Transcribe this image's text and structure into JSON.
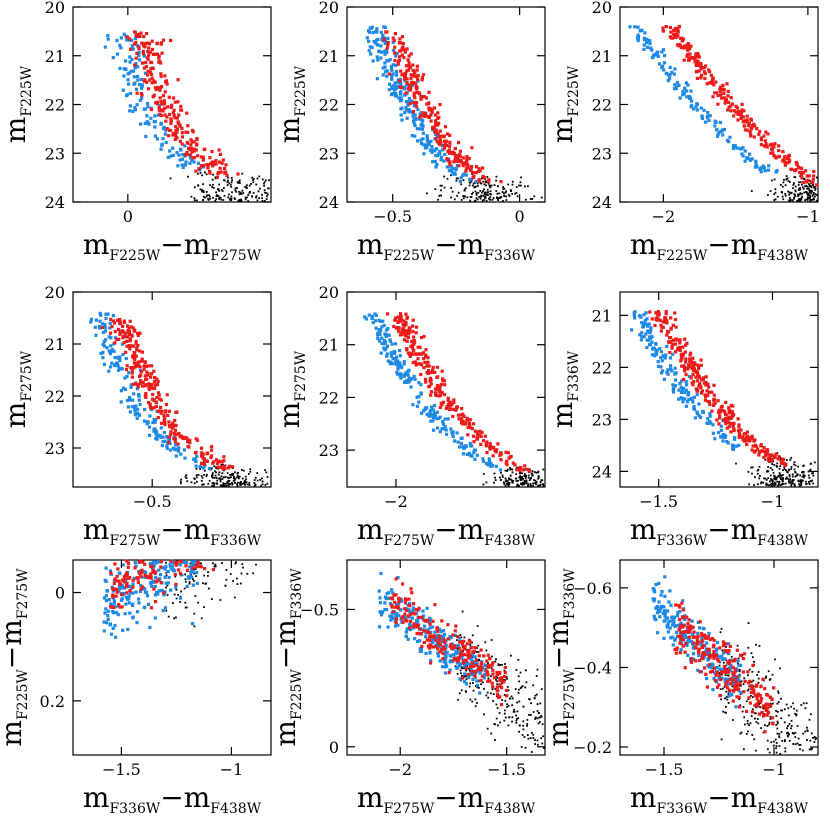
{
  "colors": {
    "red": "#ee1b1b",
    "blue": "#1e88e5",
    "black": "#000000"
  },
  "chart_data": [
    {
      "type": "scatter",
      "row": 0,
      "col": 0,
      "xlabel": {
        "m1": "F225W",
        "m2": "F275W"
      },
      "ylabel": {
        "m1": "F225W"
      },
      "xlim": [
        -0.18,
        0.47
      ],
      "ylim": [
        24,
        20
      ],
      "y_inverted": true,
      "xticks": [
        0
      ],
      "xtick_labels": [
        "0"
      ],
      "yticks": [
        20,
        21,
        22,
        23,
        24
      ],
      "ytick_labels": [
        "20",
        "21",
        "22",
        "23",
        "24"
      ],
      "grid": false,
      "legend": "none",
      "ridge": {
        "x": [
          0.0,
          0.03,
          0.07,
          0.12,
          0.18,
          0.24,
          0.3
        ],
        "y": [
          20.5,
          21.3,
          22.0,
          22.6,
          23.0,
          23.35,
          23.6
        ]
      },
      "series": [
        {
          "color": "red",
          "n": 230,
          "y_range": [
            20.5,
            23.5
          ],
          "offset": 0.05,
          "spread": 0.03
        },
        {
          "color": "blue",
          "n": 130,
          "y_range": [
            20.5,
            23.4
          ],
          "offset": -0.02,
          "spread": 0.025
        },
        {
          "color": "black",
          "n": 190,
          "y_range": [
            23.3,
            24.0
          ],
          "offset": 0.06,
          "spread": 0.08
        }
      ]
    },
    {
      "type": "scatter",
      "row": 0,
      "col": 1,
      "xlabel": {
        "m1": "F225W",
        "m2": "F336W"
      },
      "ylabel": {
        "m1": "F225W"
      },
      "xlim": [
        -0.68,
        0.1
      ],
      "ylim": [
        24,
        20
      ],
      "y_inverted": true,
      "xticks": [
        -0.5,
        0
      ],
      "xtick_labels": [
        "−0.5",
        "0"
      ],
      "yticks": [
        20,
        21,
        22,
        23,
        24
      ],
      "ytick_labels": [
        "20",
        "21",
        "22",
        "23",
        "24"
      ],
      "grid": false,
      "legend": "none",
      "ridge": {
        "x": [
          -0.55,
          -0.5,
          -0.45,
          -0.38,
          -0.3,
          -0.22,
          -0.15
        ],
        "y": [
          20.4,
          21.0,
          21.7,
          22.4,
          23.0,
          23.4,
          23.6
        ]
      },
      "series": [
        {
          "color": "red",
          "n": 240,
          "y_range": [
            20.5,
            23.6
          ],
          "offset": 0.04,
          "spread": 0.025
        },
        {
          "color": "blue",
          "n": 230,
          "y_range": [
            20.4,
            23.6
          ],
          "offset": -0.03,
          "spread": 0.025
        },
        {
          "color": "black",
          "n": 180,
          "y_range": [
            23.4,
            24.0
          ],
          "offset": 0.0,
          "spread": 0.08
        }
      ]
    },
    {
      "type": "scatter",
      "row": 0,
      "col": 2,
      "xlabel": {
        "m1": "F225W",
        "m2": "F438W"
      },
      "ylabel": {
        "m1": "F225W"
      },
      "xlim": [
        -2.3,
        -0.93
      ],
      "ylim": [
        24,
        20
      ],
      "y_inverted": true,
      "xticks": [
        -2,
        -1
      ],
      "xtick_labels": [
        "−2",
        "−1"
      ],
      "yticks": [
        20,
        21,
        22,
        23,
        24
      ],
      "ytick_labels": [
        "20",
        "21",
        "22",
        "23",
        "24"
      ],
      "grid": false,
      "legend": "none",
      "ridge": {
        "x": [
          -2.1,
          -1.95,
          -1.8,
          -1.6,
          -1.4,
          -1.2,
          -1.02
        ],
        "y": [
          20.3,
          20.9,
          21.5,
          22.2,
          22.8,
          23.3,
          23.7
        ]
      },
      "series": [
        {
          "color": "red",
          "n": 260,
          "y_range": [
            20.4,
            23.7
          ],
          "offset": 0.12,
          "spread": 0.035
        },
        {
          "color": "blue",
          "n": 140,
          "y_range": [
            20.4,
            23.4
          ],
          "offset": -0.12,
          "spread": 0.03
        },
        {
          "color": "black",
          "n": 220,
          "y_range": [
            23.4,
            24.0
          ],
          "offset": 0.05,
          "spread": 0.12
        }
      ]
    },
    {
      "type": "scatter",
      "row": 1,
      "col": 0,
      "xlabel": {
        "m1": "F275W",
        "m2": "F336W"
      },
      "ylabel": {
        "m1": "F275W"
      },
      "xlim": [
        -0.72,
        -0.17
      ],
      "ylim": [
        23.75,
        20
      ],
      "y_inverted": true,
      "xticks": [
        -0.5
      ],
      "xtick_labels": [
        "−0.5"
      ],
      "yticks": [
        20,
        21,
        22,
        23
      ],
      "ytick_labels": [
        "20",
        "21",
        "22",
        "23"
      ],
      "grid": false,
      "legend": "none",
      "ridge": {
        "x": [
          -0.62,
          -0.59,
          -0.55,
          -0.5,
          -0.44,
          -0.37,
          -0.3
        ],
        "y": [
          20.5,
          21.1,
          21.8,
          22.4,
          22.9,
          23.2,
          23.5
        ]
      },
      "series": [
        {
          "color": "red",
          "n": 260,
          "y_range": [
            20.5,
            23.4
          ],
          "offset": 0.035,
          "spread": 0.02
        },
        {
          "color": "blue",
          "n": 170,
          "y_range": [
            20.4,
            23.4
          ],
          "offset": -0.02,
          "spread": 0.02
        },
        {
          "color": "black",
          "n": 190,
          "y_range": [
            23.3,
            23.75
          ],
          "offset": 0.02,
          "spread": 0.06
        }
      ]
    },
    {
      "type": "scatter",
      "row": 1,
      "col": 1,
      "xlabel": {
        "m1": "F275W",
        "m2": "F438W"
      },
      "ylabel": {
        "m1": "F275W"
      },
      "xlim": [
        -2.23,
        -1.3
      ],
      "ylim": [
        23.7,
        20
      ],
      "y_inverted": true,
      "xticks": [
        -2
      ],
      "xtick_labels": [
        "−2"
      ],
      "yticks": [
        20,
        21,
        22,
        23
      ],
      "ytick_labels": [
        "20",
        "21",
        "22",
        "23"
      ],
      "grid": false,
      "legend": "none",
      "ridge": {
        "x": [
          -2.05,
          -1.98,
          -1.9,
          -1.8,
          -1.68,
          -1.57,
          -1.46
        ],
        "y": [
          20.4,
          21.0,
          21.6,
          22.2,
          22.7,
          23.1,
          23.4
        ]
      },
      "series": [
        {
          "color": "red",
          "n": 260,
          "y_range": [
            20.4,
            23.4
          ],
          "offset": 0.06,
          "spread": 0.025
        },
        {
          "color": "blue",
          "n": 200,
          "y_range": [
            20.4,
            23.4
          ],
          "offset": -0.06,
          "spread": 0.025
        },
        {
          "color": "black",
          "n": 170,
          "y_range": [
            23.3,
            23.7
          ],
          "offset": 0.05,
          "spread": 0.08
        }
      ]
    },
    {
      "type": "scatter",
      "row": 1,
      "col": 2,
      "xlabel": {
        "m1": "F336W",
        "m2": "F438W"
      },
      "ylabel": {
        "m1": "F336W"
      },
      "xlim": [
        -1.67,
        -0.8
      ],
      "ylim": [
        24.3,
        20.55
      ],
      "y_inverted": true,
      "xticks": [
        -1.5,
        -1
      ],
      "xtick_labels": [
        "−1.5",
        "−1"
      ],
      "yticks": [
        21,
        22,
        23,
        24
      ],
      "ytick_labels": [
        "21",
        "22",
        "23",
        "24"
      ],
      "grid": false,
      "legend": "none",
      "ridge": {
        "x": [
          -1.55,
          -1.48,
          -1.4,
          -1.3,
          -1.2,
          -1.1,
          -0.98
        ],
        "y": [
          20.9,
          21.5,
          22.1,
          22.7,
          23.2,
          23.6,
          23.9
        ]
      },
      "series": [
        {
          "color": "red",
          "n": 280,
          "y_range": [
            20.9,
            23.9
          ],
          "offset": 0.05,
          "spread": 0.025
        },
        {
          "color": "blue",
          "n": 160,
          "y_range": [
            20.9,
            23.6
          ],
          "offset": -0.05,
          "spread": 0.022
        },
        {
          "color": "black",
          "n": 220,
          "y_range": [
            23.6,
            24.3
          ],
          "offset": 0.05,
          "spread": 0.08
        }
      ]
    },
    {
      "type": "scatter",
      "row": 2,
      "col": 0,
      "xlabel": {
        "m1": "F336W",
        "m2": "F438W"
      },
      "ylabel": {
        "m1": "F225W",
        "m2": "F275W"
      },
      "xlim": [
        -1.72,
        -0.82
      ],
      "ylim": [
        0.3,
        -0.06
      ],
      "y_inverted": true,
      "xticks": [
        -1.5,
        -1
      ],
      "xtick_labels": [
        "−1.5",
        "−1"
      ],
      "yticks": [
        0,
        0.2
      ],
      "ytick_labels": [
        "0",
        "0.2"
      ],
      "grid": false,
      "legend": "none",
      "band": {
        "x0": -1.6,
        "y0": 0.0,
        "slope": -0.22
      },
      "series": [
        {
          "color": "red",
          "n": 230,
          "x_range": [
            -1.55,
            -1.05
          ],
          "offset": 0.0,
          "spread": 0.03
        },
        {
          "color": "blue",
          "n": 260,
          "x_range": [
            -1.58,
            -1.15
          ],
          "offset": 0.02,
          "spread": 0.035
        },
        {
          "color": "black",
          "n": 300,
          "x_range": [
            -1.3,
            -0.82
          ],
          "offset": 0.02,
          "spread": 0.06
        }
      ]
    },
    {
      "type": "scatter",
      "row": 2,
      "col": 1,
      "xlabel": {
        "m1": "F275W",
        "m2": "F438W"
      },
      "ylabel": {
        "m1": "F225W",
        "m2": "F336W"
      },
      "xlim": [
        -2.25,
        -1.32
      ],
      "ylim": [
        0.03,
        -0.68
      ],
      "y_inverted": true,
      "xticks": [
        -2,
        -1.5
      ],
      "xtick_labels": [
        "−2",
        "−1.5"
      ],
      "yticks": [
        -0.5,
        0
      ],
      "ytick_labels": [
        "−0.5",
        "0"
      ],
      "grid": false,
      "legend": "none",
      "band": {
        "x0": -2.2,
        "y0": -0.62,
        "slope": 0.58
      },
      "series": [
        {
          "color": "red",
          "n": 210,
          "x_range": [
            -2.05,
            -1.5
          ],
          "offset": 0.0,
          "spread": 0.04
        },
        {
          "color": "blue",
          "n": 230,
          "x_range": [
            -2.1,
            -1.6
          ],
          "offset": 0.02,
          "spread": 0.04
        },
        {
          "color": "black",
          "n": 270,
          "x_range": [
            -1.75,
            -1.32
          ],
          "offset": 0.03,
          "spread": 0.07
        }
      ]
    },
    {
      "type": "scatter",
      "row": 2,
      "col": 2,
      "xlabel": {
        "m1": "F336W",
        "m2": "F438W"
      },
      "ylabel": {
        "m1": "F275W",
        "m2": "F336W"
      },
      "xlim": [
        -1.7,
        -0.8
      ],
      "ylim": [
        -0.18,
        -0.67
      ],
      "y_inverted": true,
      "xticks": [
        -1.5,
        -1
      ],
      "xtick_labels": [
        "−1.5",
        "−1"
      ],
      "yticks": [
        -0.6,
        -0.4,
        -0.2
      ],
      "ytick_labels": [
        "−0.6",
        "−0.4",
        "−0.2"
      ],
      "grid": false,
      "legend": "none",
      "band": {
        "x0": -1.6,
        "y0": -0.58,
        "slope": 0.48
      },
      "series": [
        {
          "color": "red",
          "n": 240,
          "x_range": [
            -1.45,
            -1.0
          ],
          "offset": 0.0,
          "spread": 0.035
        },
        {
          "color": "blue",
          "n": 230,
          "x_range": [
            -1.55,
            -1.15
          ],
          "offset": 0.0,
          "spread": 0.03
        },
        {
          "color": "black",
          "n": 300,
          "x_range": [
            -1.25,
            -0.8
          ],
          "offset": 0.02,
          "spread": 0.06
        }
      ]
    }
  ]
}
